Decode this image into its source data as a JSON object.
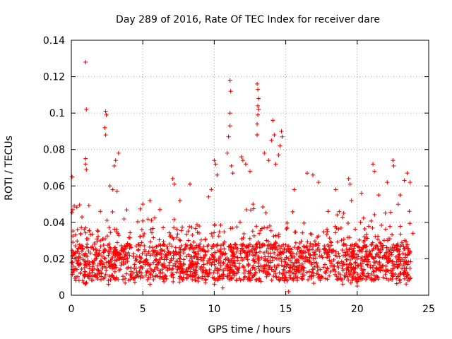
{
  "chart_data": {
    "type": "scatter",
    "title": "Day 289 of 2016, Rate Of TEC Index for receiver dare",
    "xlabel": "GPS time / hours",
    "ylabel": "ROTI / TECUs",
    "xlim": [
      0,
      25
    ],
    "ylim": [
      0,
      0.14
    ],
    "x_ticks": [
      0,
      5,
      10,
      15,
      20,
      25
    ],
    "y_ticks": [
      0,
      0.02,
      0.04,
      0.06,
      0.08,
      0.1,
      0.12,
      0.14
    ],
    "x_tick_labels": [
      "0",
      "5",
      "10",
      "15",
      "20",
      "25"
    ],
    "y_tick_labels": [
      "0",
      "0.02",
      "0.04",
      "0.06",
      "0.08",
      "0.1",
      "0.12",
      "0.14"
    ],
    "grid": true,
    "marker": "+",
    "color": "#ff0000",
    "series": [
      {
        "name": "ROTI",
        "note": "Dense band of points roughly 0.005-0.03 TECU across 0-24 h; representative outliers listed",
        "points": [
          [
            1.0,
            0.128
          ],
          [
            1.05,
            0.102
          ],
          [
            2.4,
            0.101
          ],
          [
            2.45,
            0.099
          ],
          [
            2.35,
            0.092
          ],
          [
            2.4,
            0.088
          ],
          [
            1.0,
            0.075
          ],
          [
            1.0,
            0.072
          ],
          [
            1.05,
            0.069
          ],
          [
            3.1,
            0.074
          ],
          [
            3.3,
            0.078
          ],
          [
            3.0,
            0.071
          ],
          [
            2.7,
            0.06
          ],
          [
            2.9,
            0.058
          ],
          [
            3.2,
            0.057
          ],
          [
            0.05,
            0.065
          ],
          [
            0.1,
            0.047
          ],
          [
            0.2,
            0.049
          ],
          [
            5.0,
            0.05
          ],
          [
            5.5,
            0.052
          ],
          [
            6.2,
            0.047
          ],
          [
            7.1,
            0.064
          ],
          [
            7.2,
            0.061
          ],
          [
            7.6,
            0.052
          ],
          [
            8.3,
            0.061
          ],
          [
            9.6,
            0.054
          ],
          [
            9.8,
            0.058
          ],
          [
            10.0,
            0.074
          ],
          [
            10.1,
            0.072
          ],
          [
            10.2,
            0.066
          ],
          [
            11.1,
            0.118
          ],
          [
            11.15,
            0.112
          ],
          [
            11.1,
            0.1
          ],
          [
            11.1,
            0.093
          ],
          [
            11.0,
            0.087
          ],
          [
            10.9,
            0.078
          ],
          [
            11.2,
            0.071
          ],
          [
            11.3,
            0.067
          ],
          [
            11.9,
            0.076
          ],
          [
            12.0,
            0.074
          ],
          [
            12.2,
            0.072
          ],
          [
            12.5,
            0.068
          ],
          [
            13.0,
            0.116
          ],
          [
            13.05,
            0.113
          ],
          [
            13.1,
            0.108
          ],
          [
            13.05,
            0.104
          ],
          [
            13.1,
            0.102
          ],
          [
            13.05,
            0.099
          ],
          [
            13.0,
            0.094
          ],
          [
            13.0,
            0.088
          ],
          [
            13.5,
            0.078
          ],
          [
            14.1,
            0.096
          ],
          [
            14.2,
            0.088
          ],
          [
            14.0,
            0.085
          ],
          [
            14.7,
            0.09
          ],
          [
            14.75,
            0.087
          ],
          [
            14.6,
            0.082
          ],
          [
            14.5,
            0.077
          ],
          [
            14.3,
            0.072
          ],
          [
            13.8,
            0.074
          ],
          [
            15.6,
            0.058
          ],
          [
            16.5,
            0.067
          ],
          [
            16.9,
            0.066
          ],
          [
            17.3,
            0.062
          ],
          [
            18.5,
            0.058
          ],
          [
            19.4,
            0.064
          ],
          [
            19.5,
            0.061
          ],
          [
            19.6,
            0.052
          ],
          [
            20.3,
            0.056
          ],
          [
            21.1,
            0.072
          ],
          [
            21.2,
            0.068
          ],
          [
            21.5,
            0.055
          ],
          [
            22.1,
            0.062
          ],
          [
            22.5,
            0.074
          ],
          [
            22.55,
            0.071
          ],
          [
            23.0,
            0.055
          ],
          [
            23.3,
            0.063
          ],
          [
            23.5,
            0.067
          ],
          [
            23.7,
            0.062
          ],
          [
            23.9,
            0.034
          ],
          [
            15.2,
            0.002
          ],
          [
            10.6,
            0.004
          ],
          [
            20.0,
            0.005
          ],
          [
            5.5,
            0.006
          ]
        ]
      }
    ]
  }
}
